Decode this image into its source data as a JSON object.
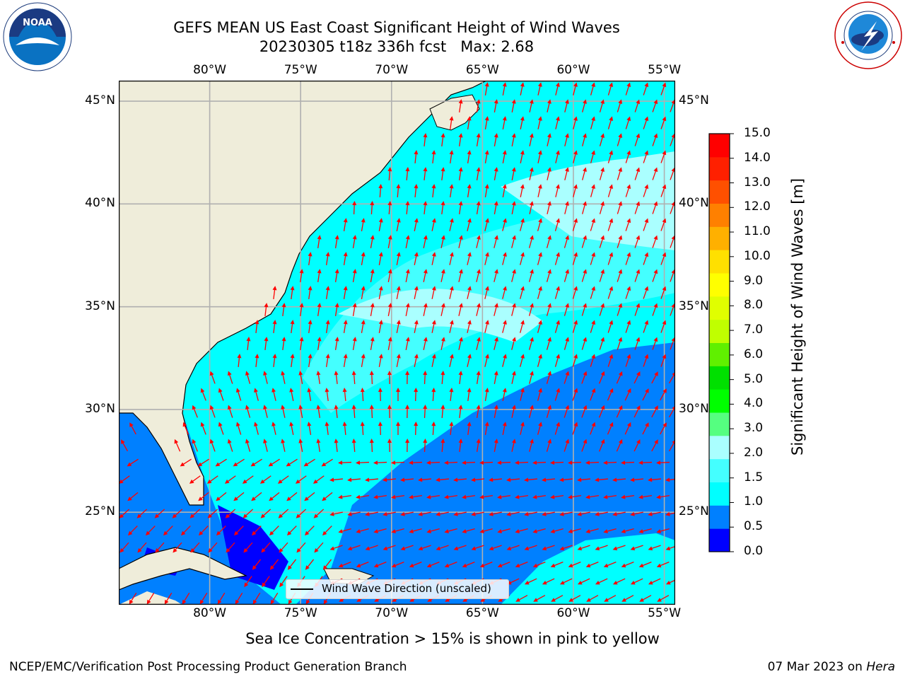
{
  "title": {
    "line1": "GEFS MEAN US East Coast Significant Height of Wind Waves",
    "line2": "20230305 t18z 336h fcst   Max: 2.68"
  },
  "logos": {
    "left": "NOAA",
    "right": "NATIONAL WEATHER SERVICE"
  },
  "map": {
    "lon_labels": [
      "80°W",
      "75°W",
      "70°W",
      "65°W",
      "60°W",
      "55°W"
    ],
    "lat_labels": [
      "45°N",
      "40°N",
      "35°N",
      "30°N",
      "25°N"
    ],
    "lon_range": [
      -85,
      -54.4
    ],
    "lat_range": [
      20.5,
      46
    ],
    "legend": "Wind Wave Direction (unscaled)",
    "land_color": "#efedda",
    "arrow_color": "#ff0000"
  },
  "colorbar": {
    "label": "Significant Height of Wind Waves [m]",
    "ticks": [
      "0.0",
      "0.5",
      "1.0",
      "1.5",
      "2.0",
      "3.0",
      "4.0",
      "5.0",
      "6.0",
      "7.0",
      "8.0",
      "9.0",
      "10.0",
      "11.0",
      "12.0",
      "13.0",
      "14.0",
      "15.0"
    ],
    "colors": [
      "#0000ff",
      "#0080ff",
      "#00ffff",
      "#44ffff",
      "#aaffff",
      "#55ff80",
      "#00ff00",
      "#00e000",
      "#60f000",
      "#c0ff00",
      "#e0ff00",
      "#ffff00",
      "#ffe000",
      "#ffb000",
      "#ff8000",
      "#ff5000",
      "#ff2000",
      "#ff0000"
    ]
  },
  "caption": "Sea Ice Concentration > 15% is shown in pink to yellow",
  "footer": {
    "left": "NCEP/EMC/Verification Post Processing Product Generation Branch",
    "right_prefix": "07 Mar 2023 on ",
    "right_host": "Hera"
  }
}
